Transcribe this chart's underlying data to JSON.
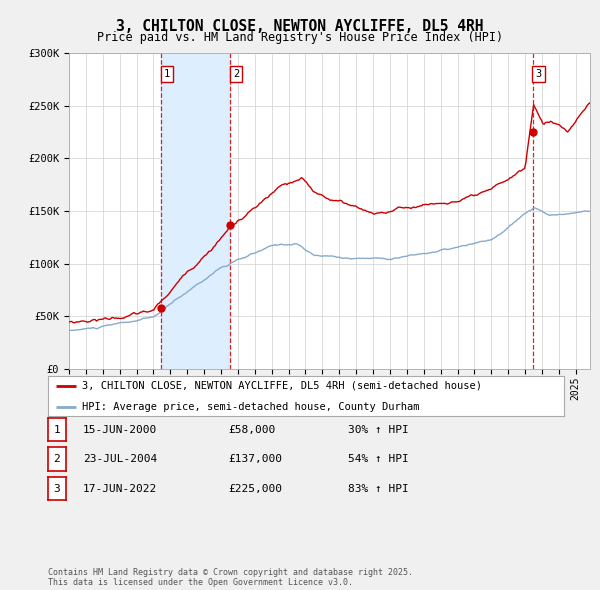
{
  "title": "3, CHILTON CLOSE, NEWTON AYCLIFFE, DL5 4RH",
  "subtitle": "Price paid vs. HM Land Registry's House Price Index (HPI)",
  "ylim": [
    0,
    300000
  ],
  "yticks": [
    0,
    50000,
    100000,
    150000,
    200000,
    250000,
    300000
  ],
  "ytick_labels": [
    "£0",
    "£50K",
    "£100K",
    "£150K",
    "£200K",
    "£250K",
    "£300K"
  ],
  "xlim_start": 1995.0,
  "xlim_end": 2025.83,
  "purchases": [
    {
      "date_year": 2000.458,
      "price": 58000,
      "label": "1"
    },
    {
      "date_year": 2004.558,
      "price": 137000,
      "label": "2"
    },
    {
      "date_year": 2022.458,
      "price": 225000,
      "label": "3"
    }
  ],
  "purchase_color": "#cc0000",
  "hpi_color": "#88aacc",
  "shaded_color": "#ddeeff",
  "grid_color": "#d0d0d0",
  "legend_entries": [
    "3, CHILTON CLOSE, NEWTON AYCLIFFE, DL5 4RH (semi-detached house)",
    "HPI: Average price, semi-detached house, County Durham"
  ],
  "table_entries": [
    {
      "num": "1",
      "date": "15-JUN-2000",
      "price": "£58,000",
      "hpi": "30% ↑ HPI"
    },
    {
      "num": "2",
      "date": "23-JUL-2004",
      "price": "£137,000",
      "hpi": "54% ↑ HPI"
    },
    {
      "num": "3",
      "date": "17-JUN-2022",
      "price": "£225,000",
      "hpi": "83% ↑ HPI"
    }
  ],
  "footnote": "Contains HM Land Registry data © Crown copyright and database right 2025.\nThis data is licensed under the Open Government Licence v3.0."
}
